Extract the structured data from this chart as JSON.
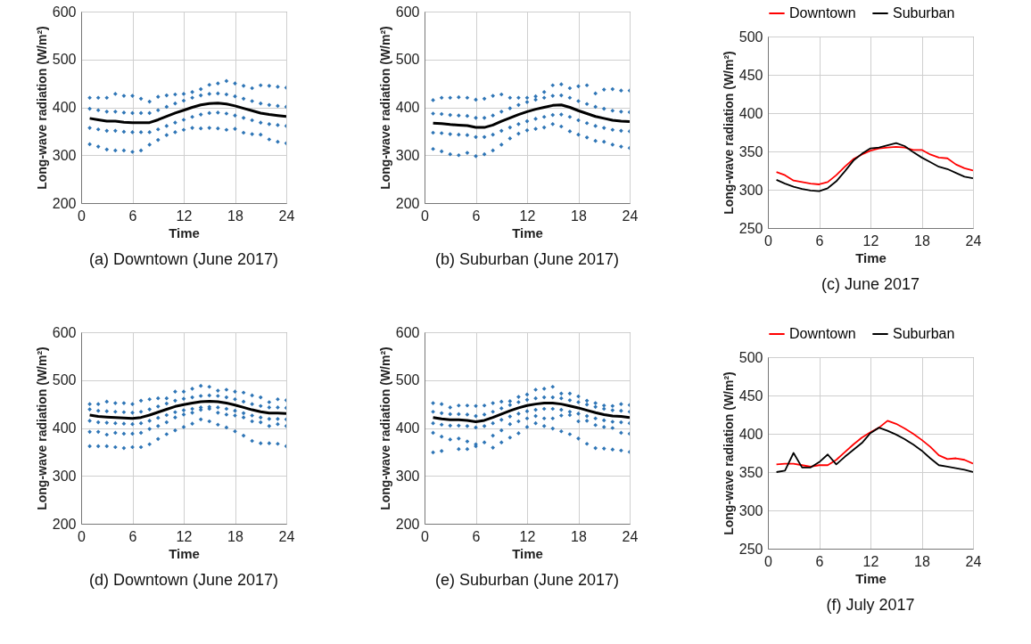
{
  "chart_data": [
    {
      "type": "scatter",
      "title": "(a) Downtown (June 2017)",
      "xlabel": "Time",
      "ylabel": "Long-wave radiation (W/m²)",
      "xlim": [
        0,
        24
      ],
      "xticks": [
        0,
        6,
        12,
        18,
        24
      ],
      "ylim": [
        200,
        600
      ],
      "yticks": [
        200,
        300,
        400,
        500,
        600
      ],
      "grid": true,
      "x": [
        1,
        2,
        3,
        4,
        5,
        6,
        7,
        8,
        9,
        10,
        11,
        12,
        13,
        14,
        15,
        16,
        17,
        18,
        19,
        20,
        21,
        22,
        23,
        24
      ],
      "series": [
        {
          "marker": "diamond",
          "color": "#2e75b6",
          "x": [
            1,
            2,
            3,
            4,
            5,
            6,
            7,
            8,
            9,
            10,
            11,
            12,
            13,
            14,
            15,
            16,
            17,
            18,
            19,
            20,
            21,
            22,
            23,
            24,
            1,
            2,
            3,
            4,
            5,
            6,
            7,
            8,
            9,
            10,
            11,
            12,
            13,
            14,
            15,
            16,
            17,
            18,
            19,
            20,
            21,
            22,
            23,
            24,
            1,
            2,
            3,
            4,
            5,
            6,
            7,
            8,
            9,
            10,
            11,
            12,
            13,
            14,
            15,
            16,
            17,
            18,
            19,
            20,
            21,
            22,
            23,
            24,
            1,
            2,
            3,
            4,
            5,
            6,
            7,
            8,
            9,
            10,
            11,
            12,
            13,
            14,
            15,
            16,
            17,
            18,
            19,
            20,
            21,
            22,
            23,
            24
          ],
          "values": [
            323,
            318,
            312,
            310,
            310,
            307,
            310,
            322,
            332,
            342,
            348,
            353,
            357,
            356,
            357,
            356,
            353,
            355,
            347,
            344,
            343,
            333,
            328,
            325,
            357,
            354,
            351,
            351,
            349,
            348,
            348,
            348,
            354,
            361,
            368,
            374,
            380,
            385,
            388,
            389,
            387,
            383,
            378,
            373,
            368,
            365,
            363,
            361,
            397,
            394,
            391,
            391,
            389,
            388,
            388,
            388,
            394,
            401,
            408,
            414,
            420,
            425,
            428,
            429,
            427,
            423,
            418,
            413,
            408,
            405,
            403,
            401,
            420,
            420,
            420,
            428,
            424,
            424,
            418,
            412,
            422,
            425,
            427,
            428,
            432,
            438,
            447,
            450,
            455,
            450,
            445,
            440,
            446,
            445,
            443,
            441
          ]
        },
        {
          "type": "line",
          "color": "#000000",
          "values": [
            377,
            374,
            371,
            371,
            369,
            368,
            368,
            368,
            374,
            381,
            388,
            394,
            400,
            405,
            408,
            409,
            407,
            403,
            398,
            393,
            388,
            385,
            383,
            381
          ]
        }
      ]
    },
    {
      "type": "scatter",
      "title": "(b) Suburban (June 2017)",
      "xlabel": "Time",
      "ylabel": "Long-wave radiation (W/m²)",
      "xlim": [
        0,
        24
      ],
      "xticks": [
        0,
        6,
        12,
        18,
        24
      ],
      "ylim": [
        200,
        600
      ],
      "yticks": [
        200,
        300,
        400,
        500,
        600
      ],
      "grid": true,
      "x": [
        1,
        2,
        3,
        4,
        5,
        6,
        7,
        8,
        9,
        10,
        11,
        12,
        13,
        14,
        15,
        16,
        17,
        18,
        19,
        20,
        21,
        22,
        23,
        24
      ],
      "series": [
        {
          "marker": "diamond",
          "color": "#2e75b6",
          "x": [
            1,
            2,
            3,
            4,
            5,
            6,
            7,
            8,
            9,
            10,
            11,
            12,
            13,
            14,
            15,
            16,
            17,
            18,
            19,
            20,
            21,
            22,
            23,
            24,
            1,
            2,
            3,
            4,
            5,
            6,
            7,
            8,
            9,
            10,
            11,
            12,
            13,
            14,
            15,
            16,
            17,
            18,
            19,
            20,
            21,
            22,
            23,
            24,
            1,
            2,
            3,
            4,
            5,
            6,
            7,
            8,
            9,
            10,
            11,
            12,
            13,
            14,
            15,
            16,
            17,
            18,
            19,
            20,
            21,
            22,
            23,
            24,
            1,
            2,
            3,
            4,
            5,
            6,
            7,
            8,
            9,
            10,
            11,
            12,
            13,
            14,
            15,
            16,
            17,
            18,
            19,
            20,
            21,
            22,
            23,
            24
          ],
          "values": [
            313,
            308,
            302,
            300,
            305,
            298,
            302,
            310,
            322,
            335,
            345,
            352,
            355,
            358,
            365,
            360,
            350,
            343,
            337,
            330,
            328,
            322,
            318,
            315,
            347,
            346,
            344,
            343,
            342,
            338,
            338,
            343,
            351,
            358,
            365,
            371,
            376,
            380,
            384,
            385,
            380,
            373,
            367,
            361,
            357,
            353,
            351,
            350,
            387,
            386,
            384,
            383,
            382,
            378,
            378,
            383,
            391,
            398,
            405,
            411,
            416,
            420,
            424,
            425,
            420,
            413,
            407,
            401,
            397,
            393,
            391,
            390,
            415,
            420,
            420,
            421,
            420,
            416,
            418,
            424,
            427,
            420,
            420,
            420,
            423,
            432,
            446,
            448,
            440,
            444,
            446,
            429,
            437,
            438,
            435,
            435
          ]
        },
        {
          "type": "line",
          "color": "#000000",
          "values": [
            367,
            366,
            364,
            363,
            362,
            358,
            358,
            363,
            371,
            378,
            385,
            391,
            396,
            400,
            404,
            405,
            400,
            393,
            387,
            381,
            377,
            373,
            371,
            370
          ]
        }
      ]
    },
    {
      "type": "line",
      "title": "(c) June 2017",
      "xlabel": "Time",
      "ylabel": "Long-wave radiation (W/m²)",
      "xlim": [
        0,
        24
      ],
      "xticks": [
        0,
        6,
        12,
        18,
        24
      ],
      "ylim": [
        250,
        500
      ],
      "yticks": [
        250,
        300,
        350,
        400,
        450,
        500
      ],
      "grid": true,
      "legend": "top",
      "x": [
        1,
        2,
        3,
        4,
        5,
        6,
        7,
        8,
        9,
        10,
        11,
        12,
        13,
        14,
        15,
        16,
        17,
        18,
        19,
        20,
        21,
        22,
        23,
        24
      ],
      "series": [
        {
          "name": "Downtown",
          "color": "#ff0000",
          "values": [
            323,
            319,
            312,
            310,
            308,
            307,
            310,
            319,
            330,
            340,
            346,
            351,
            354,
            355,
            356,
            355,
            352,
            352,
            346,
            342,
            341,
            333,
            328,
            325
          ]
        },
        {
          "name": "Suburban",
          "color": "#000000",
          "values": [
            313,
            308,
            304,
            301,
            299,
            298,
            302,
            311,
            324,
            338,
            347,
            354,
            355,
            358,
            361,
            357,
            349,
            342,
            336,
            330,
            327,
            322,
            317,
            315
          ]
        }
      ]
    },
    {
      "type": "scatter",
      "title": "(d) Downtown (June 2017)",
      "xlabel": "Time",
      "ylabel": "Long-wave radiation (W/m²)",
      "xlim": [
        0,
        24
      ],
      "xticks": [
        0,
        6,
        12,
        18,
        24
      ],
      "ylim": [
        200,
        600
      ],
      "yticks": [
        200,
        300,
        400,
        500,
        600
      ],
      "grid": true,
      "x": [
        1,
        2,
        3,
        4,
        5,
        6,
        7,
        8,
        9,
        10,
        11,
        12,
        13,
        14,
        15,
        16,
        17,
        18,
        19,
        20,
        21,
        22,
        23,
        24
      ],
      "series": [
        {
          "marker": "diamond",
          "color": "#2e75b6",
          "x": [
            1,
            2,
            3,
            4,
            5,
            6,
            7,
            8,
            9,
            10,
            11,
            12,
            13,
            14,
            15,
            16,
            17,
            18,
            19,
            20,
            21,
            22,
            23,
            24,
            1,
            2,
            3,
            4,
            5,
            6,
            7,
            8,
            9,
            10,
            11,
            12,
            13,
            14,
            15,
            16,
            17,
            18,
            19,
            20,
            21,
            22,
            23,
            24,
            1,
            2,
            3,
            4,
            5,
            6,
            7,
            8,
            9,
            10,
            11,
            12,
            13,
            14,
            15,
            16,
            17,
            18,
            19,
            20,
            21,
            22,
            23,
            24,
            1,
            2,
            3,
            4,
            5,
            6,
            7,
            8,
            9,
            10,
            11,
            12,
            13,
            14,
            15,
            16,
            17,
            18,
            19,
            20,
            21,
            22,
            23,
            24,
            1,
            2,
            3,
            4,
            5,
            6,
            7,
            8,
            9,
            10,
            11,
            12,
            13,
            14,
            15,
            16,
            17,
            18,
            19,
            20,
            21,
            22,
            23,
            24
          ],
          "values": [
            362,
            362,
            362,
            360,
            358,
            360,
            360,
            366,
            377,
            387,
            395,
            402,
            409,
            418,
            414,
            407,
            401,
            393,
            384,
            373,
            368,
            368,
            367,
            362,
            392,
            392,
            386,
            390,
            388,
            388,
            390,
            398,
            404,
            412,
            422,
            428,
            432,
            438,
            440,
            432,
            428,
            426,
            422,
            414,
            412,
            404,
            408,
            404,
            415,
            412,
            411,
            410,
            409,
            408,
            410,
            415,
            421,
            427,
            433,
            437,
            440,
            443,
            444,
            443,
            440,
            436,
            431,
            426,
            422,
            419,
            419,
            418,
            439,
            436,
            435,
            434,
            433,
            432,
            434,
            439,
            445,
            451,
            457,
            461,
            464,
            467,
            468,
            467,
            464,
            460,
            455,
            450,
            446,
            443,
            443,
            442,
            450,
            450,
            455,
            452,
            452,
            450,
            457,
            460,
            462,
            462,
            476,
            476,
            482,
            488,
            486,
            478,
            480,
            476,
            474,
            468,
            464,
            454,
            460,
            458
          ]
        },
        {
          "type": "line",
          "color": "#000000",
          "values": [
            427,
            424,
            423,
            422,
            421,
            420,
            422,
            427,
            433,
            439,
            445,
            449,
            452,
            455,
            456,
            455,
            452,
            448,
            443,
            438,
            434,
            431,
            431,
            430
          ]
        }
      ]
    },
    {
      "type": "scatter",
      "title": "(e) Suburban (June 2017)",
      "xlabel": "Time",
      "ylabel": "Long-wave radiation (W/m²)",
      "xlim": [
        0,
        24
      ],
      "xticks": [
        0,
        6,
        12,
        18,
        24
      ],
      "ylim": [
        200,
        600
      ],
      "yticks": [
        200,
        300,
        400,
        500,
        600
      ],
      "grid": true,
      "x": [
        1,
        2,
        3,
        4,
        5,
        6,
        7,
        8,
        9,
        10,
        11,
        12,
        13,
        14,
        15,
        16,
        17,
        18,
        19,
        20,
        21,
        22,
        23,
        24
      ],
      "series": [
        {
          "marker": "diamond",
          "color": "#2e75b6",
          "x": [
            1,
            2,
            4,
            5,
            6,
            8,
            9,
            10,
            11,
            12,
            13,
            14,
            15,
            16,
            17,
            18,
            19,
            20,
            21,
            22,
            23,
            24,
            1,
            2,
            3,
            4,
            5,
            6,
            7,
            8,
            9,
            10,
            11,
            12,
            13,
            14,
            15,
            16,
            17,
            18,
            19,
            20,
            21,
            22,
            23,
            24,
            1,
            2,
            3,
            4,
            5,
            6,
            7,
            8,
            9,
            10,
            11,
            12,
            13,
            14,
            15,
            16,
            17,
            18,
            19,
            20,
            21,
            22,
            23,
            24,
            1,
            2,
            3,
            4,
            5,
            6,
            7,
            8,
            9,
            10,
            11,
            12,
            13,
            14,
            15,
            16,
            17,
            18,
            19,
            20,
            21,
            22,
            23,
            24,
            1,
            2,
            3,
            4,
            5,
            6,
            7,
            8,
            9,
            10,
            11,
            12,
            13,
            14,
            15,
            16,
            17,
            18,
            19,
            20,
            21,
            22,
            23,
            24
          ],
          "values": [
            349,
            352,
            356,
            356,
            362,
            359,
            370,
            380,
            389,
            402,
            410,
            404,
            399,
            393,
            387,
            378,
            367,
            358,
            357,
            355,
            353,
            350,
            390,
            382,
            376,
            378,
            372,
            366,
            370,
            384,
            395,
            408,
            414,
            420,
            425,
            420,
            420,
            426,
            427,
            414,
            415,
            406,
            402,
            400,
            390,
            388,
            410,
            407,
            405,
            405,
            404,
            401,
            404,
            410,
            417,
            424,
            430,
            435,
            438,
            440,
            440,
            438,
            434,
            430,
            425,
            420,
            416,
            413,
            412,
            410,
            434,
            431,
            429,
            429,
            428,
            425,
            428,
            434,
            441,
            448,
            454,
            459,
            462,
            464,
            464,
            462,
            458,
            454,
            449,
            444,
            440,
            437,
            436,
            434,
            452,
            450,
            443,
            447,
            447,
            446,
            447,
            452,
            455,
            456,
            465,
            470,
            480,
            482,
            486,
            472,
            472,
            466,
            457,
            452,
            447,
            446,
            450,
            448
          ]
        },
        {
          "type": "line",
          "color": "#000000",
          "values": [
            422,
            419,
            417,
            417,
            416,
            413,
            416,
            422,
            429,
            436,
            442,
            447,
            450,
            452,
            452,
            450,
            446,
            442,
            437,
            432,
            428,
            425,
            424,
            422
          ]
        }
      ]
    },
    {
      "type": "line",
      "title": "(f) July 2017",
      "xlabel": "Time",
      "ylabel": "Long-wave radiation (W/m²)",
      "xlim": [
        0,
        24
      ],
      "xticks": [
        0,
        6,
        12,
        18,
        24
      ],
      "ylim": [
        250,
        500
      ],
      "yticks": [
        250,
        300,
        350,
        400,
        450,
        500
      ],
      "grid": true,
      "legend": "top",
      "x": [
        1,
        2,
        3,
        4,
        5,
        6,
        7,
        8,
        9,
        10,
        11,
        12,
        13,
        14,
        15,
        16,
        17,
        18,
        19,
        20,
        21,
        22,
        23,
        24
      ],
      "series": [
        {
          "name": "Downtown",
          "color": "#ff0000",
          "values": [
            360,
            361,
            361,
            359,
            357,
            359,
            359,
            366,
            376,
            386,
            395,
            402,
            408,
            417,
            413,
            407,
            400,
            392,
            383,
            372,
            367,
            368,
            366,
            361
          ]
        },
        {
          "name": "Suburban",
          "color": "#000000",
          "values": [
            350,
            352,
            375,
            356,
            356,
            363,
            373,
            360,
            370,
            379,
            388,
            401,
            408,
            404,
            399,
            393,
            386,
            378,
            368,
            359,
            357,
            355,
            353,
            350
          ]
        }
      ]
    }
  ]
}
